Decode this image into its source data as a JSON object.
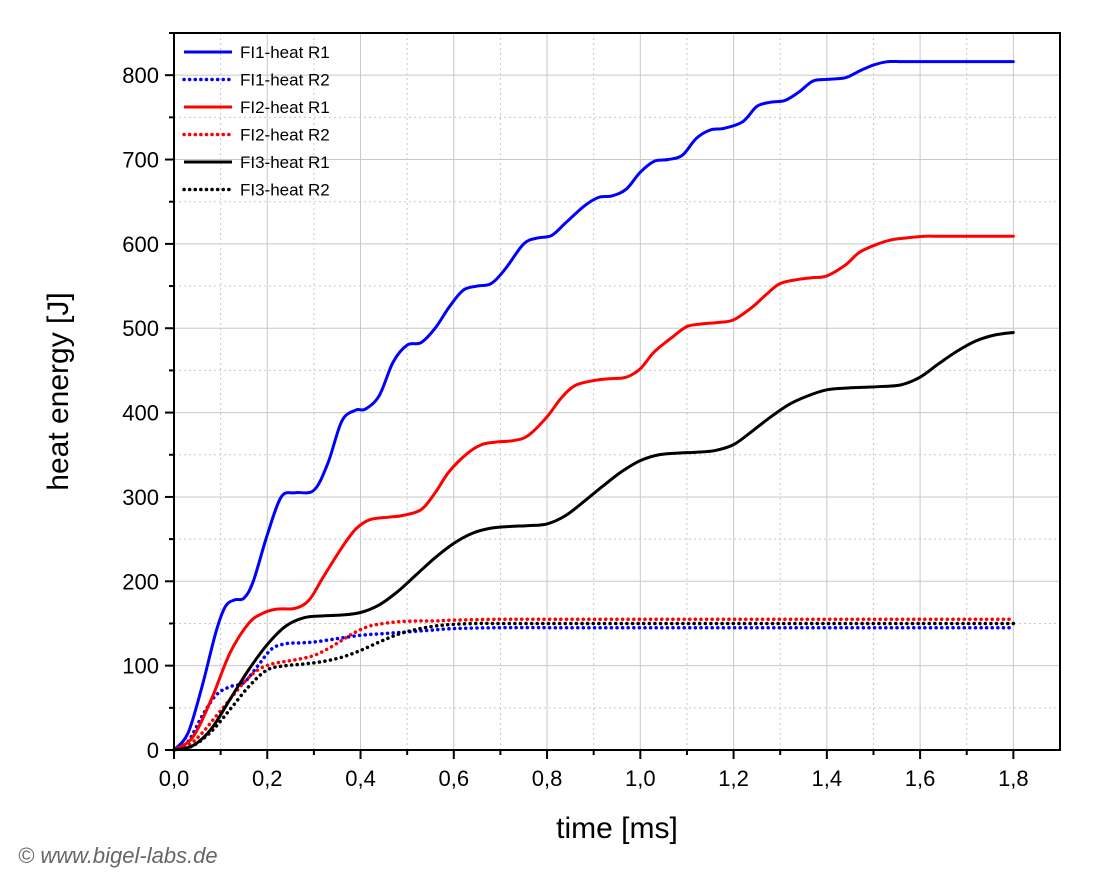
{
  "chart_data": {
    "type": "line",
    "xlabel": "time [ms]",
    "ylabel": "heat energy [J]",
    "xlim": [
      0,
      1.9
    ],
    "ylim": [
      0,
      850
    ],
    "x_ticks": [
      "0,0",
      "0,2",
      "0,4",
      "0,6",
      "0,8",
      "1,0",
      "1,2",
      "1,4",
      "1,6",
      "1,8"
    ],
    "y_ticks": [
      "0",
      "100",
      "200",
      "300",
      "400",
      "500",
      "600",
      "700",
      "800"
    ],
    "grid": true,
    "legend_position": "top-left",
    "series": [
      {
        "name": "FI1-heat R1",
        "color": "#0000ff",
        "style": "solid",
        "x": [
          0,
          0.03,
          0.06,
          0.09,
          0.11,
          0.13,
          0.15,
          0.17,
          0.2,
          0.23,
          0.26,
          0.3,
          0.33,
          0.36,
          0.39,
          0.41,
          0.44,
          0.47,
          0.5,
          0.53,
          0.56,
          0.59,
          0.62,
          0.65,
          0.68,
          0.71,
          0.75,
          0.78,
          0.81,
          0.84,
          0.88,
          0.91,
          0.94,
          0.97,
          1.0,
          1.03,
          1.06,
          1.09,
          1.12,
          1.15,
          1.18,
          1.22,
          1.25,
          1.28,
          1.31,
          1.34,
          1.37,
          1.4,
          1.44,
          1.47,
          1.5,
          1.53,
          1.56,
          1.59,
          1.62,
          1.65,
          1.68,
          1.71,
          1.74,
          1.77,
          1.8
        ],
        "y": [
          0,
          20,
          75,
          140,
          170,
          178,
          180,
          200,
          255,
          300,
          305,
          308,
          340,
          390,
          403,
          404,
          420,
          460,
          480,
          483,
          500,
          525,
          545,
          550,
          553,
          570,
          600,
          607,
          610,
          625,
          645,
          655,
          657,
          665,
          685,
          698,
          700,
          705,
          725,
          735,
          737,
          745,
          763,
          768,
          770,
          780,
          793,
          795,
          797,
          805,
          812,
          816,
          816,
          816,
          816,
          816,
          816,
          816,
          816,
          816,
          816
        ]
      },
      {
        "name": "FI1-heat R2",
        "color": "#0000ff",
        "style": "dotted",
        "x": [
          0,
          0.03,
          0.06,
          0.09,
          0.12,
          0.15,
          0.18,
          0.21,
          0.24,
          0.27,
          0.3,
          0.35,
          0.4,
          0.45,
          0.5,
          0.55,
          0.6,
          0.7,
          0.8,
          1.0,
          1.2,
          1.4,
          1.6,
          1.8
        ],
        "y": [
          0,
          10,
          40,
          65,
          75,
          80,
          100,
          120,
          126,
          127,
          128,
          132,
          136,
          138,
          140,
          142,
          144,
          145,
          145,
          145,
          145,
          145,
          145,
          145
        ]
      },
      {
        "name": "FI2-heat R1",
        "color": "#ff0000",
        "style": "solid",
        "x": [
          0,
          0.04,
          0.08,
          0.12,
          0.16,
          0.19,
          0.22,
          0.26,
          0.29,
          0.32,
          0.36,
          0.39,
          0.42,
          0.46,
          0.49,
          0.53,
          0.56,
          0.59,
          0.63,
          0.66,
          0.69,
          0.73,
          0.76,
          0.8,
          0.83,
          0.86,
          0.9,
          0.93,
          0.97,
          1.0,
          1.03,
          1.07,
          1.1,
          1.13,
          1.17,
          1.2,
          1.24,
          1.27,
          1.3,
          1.34,
          1.37,
          1.4,
          1.44,
          1.47,
          1.51,
          1.54,
          1.57,
          1.61,
          1.64,
          1.67,
          1.71,
          1.74,
          1.77,
          1.8
        ],
        "y": [
          0,
          15,
          60,
          115,
          150,
          162,
          167,
          168,
          178,
          205,
          240,
          262,
          273,
          276,
          278,
          285,
          305,
          330,
          352,
          362,
          365,
          367,
          373,
          395,
          417,
          432,
          438,
          440,
          442,
          452,
          472,
          490,
          502,
          505,
          507,
          510,
          525,
          540,
          553,
          558,
          560,
          562,
          575,
          590,
          600,
          605,
          607,
          609,
          609,
          609,
          609,
          609,
          609,
          609
        ]
      },
      {
        "name": "FI2-heat R2",
        "color": "#ff0000",
        "style": "dotted",
        "x": [
          0,
          0.03,
          0.06,
          0.09,
          0.12,
          0.15,
          0.18,
          0.21,
          0.24,
          0.27,
          0.3,
          0.33,
          0.36,
          0.39,
          0.42,
          0.45,
          0.48,
          0.52,
          0.56,
          0.6,
          0.7,
          0.8,
          1.0,
          1.2,
          1.4,
          1.6,
          1.8
        ],
        "y": [
          0,
          5,
          20,
          40,
          60,
          80,
          95,
          102,
          105,
          108,
          112,
          120,
          130,
          140,
          147,
          150,
          152,
          153,
          153,
          154,
          155,
          155,
          155,
          155,
          155,
          155,
          155
        ]
      },
      {
        "name": "FI3-heat R1",
        "color": "#000000",
        "style": "solid",
        "x": [
          0,
          0.04,
          0.08,
          0.12,
          0.16,
          0.2,
          0.24,
          0.28,
          0.32,
          0.36,
          0.4,
          0.44,
          0.48,
          0.52,
          0.56,
          0.6,
          0.64,
          0.68,
          0.72,
          0.76,
          0.8,
          0.84,
          0.88,
          0.92,
          0.96,
          1.0,
          1.04,
          1.08,
          1.12,
          1.16,
          1.2,
          1.24,
          1.28,
          1.32,
          1.36,
          1.4,
          1.44,
          1.48,
          1.52,
          1.56,
          1.6,
          1.64,
          1.68,
          1.72,
          1.76,
          1.8
        ],
        "y": [
          0,
          5,
          25,
          60,
          95,
          125,
          147,
          157,
          159,
          160,
          163,
          172,
          188,
          208,
          228,
          245,
          257,
          263,
          265,
          266,
          268,
          278,
          295,
          313,
          330,
          343,
          350,
          352,
          353,
          355,
          362,
          378,
          395,
          410,
          420,
          427,
          429,
          430,
          431,
          433,
          442,
          458,
          473,
          485,
          492,
          495
        ]
      },
      {
        "name": "FI3-heat R2",
        "color": "#000000",
        "style": "dotted",
        "x": [
          0,
          0.04,
          0.08,
          0.12,
          0.16,
          0.2,
          0.24,
          0.28,
          0.32,
          0.36,
          0.4,
          0.44,
          0.48,
          0.52,
          0.56,
          0.6,
          0.65,
          0.7,
          0.8,
          1.0,
          1.2,
          1.4,
          1.6,
          1.8
        ],
        "y": [
          0,
          5,
          22,
          48,
          75,
          95,
          100,
          102,
          105,
          110,
          118,
          128,
          137,
          143,
          147,
          149,
          150,
          150,
          150,
          150,
          150,
          150,
          150,
          150
        ]
      }
    ]
  },
  "copyright": "© www.bigel-labs.de"
}
